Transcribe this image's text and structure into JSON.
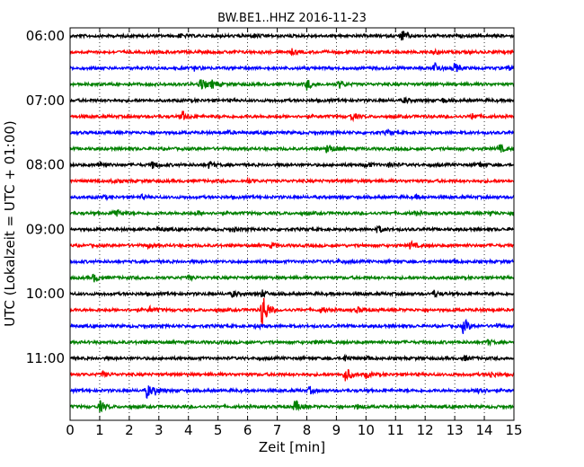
{
  "chart_data": {
    "type": "line",
    "title": "BW.BE1..HHZ 2016-11-23",
    "xlabel": "Zeit  [min]",
    "ylabel": "UTC (Lokalzeit = UTC + 01:00)",
    "xlim": [
      0,
      15
    ],
    "x_ticks": [
      "0",
      "1",
      "2",
      "3",
      "4",
      "5",
      "6",
      "7",
      "8",
      "9",
      "10",
      "11",
      "12",
      "13",
      "14",
      "15"
    ],
    "y_ticks": [
      "06:00",
      "07:00",
      "08:00",
      "09:00",
      "10:00",
      "11:00"
    ],
    "grid": "vertical-dotted",
    "trace_colors": [
      "#000000",
      "#ff0000",
      "#0000ff",
      "#008000"
    ],
    "traces": [
      {
        "start": "06:00",
        "events": [
          [
            3.7,
            0.3
          ],
          [
            6.2,
            0.25
          ],
          [
            11.2,
            0.9
          ]
        ]
      },
      {
        "start": "06:15",
        "events": [
          [
            7.5,
            0.35
          ],
          [
            12.3,
            0.25
          ]
        ]
      },
      {
        "start": "06:30",
        "events": [
          [
            4.2,
            0.3
          ],
          [
            12.3,
            1.0
          ],
          [
            13.0,
            0.7
          ],
          [
            14.8,
            0.3
          ]
        ]
      },
      {
        "start": "06:45",
        "events": [
          [
            4.4,
            1.0
          ],
          [
            4.8,
            0.6
          ],
          [
            8.0,
            0.9
          ],
          [
            9.1,
            0.6
          ]
        ]
      },
      {
        "start": "07:00",
        "events": [
          [
            11.3,
            0.4
          ],
          [
            12.6,
            0.3
          ]
        ]
      },
      {
        "start": "07:15",
        "events": [
          [
            3.8,
            0.8
          ],
          [
            9.5,
            0.6
          ],
          [
            13.6,
            0.5
          ]
        ]
      },
      {
        "start": "07:30",
        "events": [
          [
            5.3,
            0.3
          ],
          [
            10.7,
            0.3
          ]
        ]
      },
      {
        "start": "07:45",
        "events": [
          [
            8.7,
            0.9
          ],
          [
            14.5,
            0.7
          ]
        ]
      },
      {
        "start": "08:00",
        "events": [
          [
            1.0,
            0.5
          ],
          [
            2.8,
            0.6
          ],
          [
            4.7,
            0.5
          ],
          [
            10.0,
            0.4
          ],
          [
            10.8,
            0.4
          ],
          [
            13.8,
            0.4
          ]
        ]
      },
      {
        "start": "08:15",
        "events": [
          [
            1.4,
            0.3
          ],
          [
            6.0,
            0.3
          ]
        ]
      },
      {
        "start": "08:30",
        "events": [
          [
            1.1,
            0.3
          ],
          [
            2.4,
            0.3
          ],
          [
            11.7,
            0.2
          ]
        ]
      },
      {
        "start": "08:45",
        "events": [
          [
            1.5,
            0.9
          ],
          [
            4.3,
            0.3
          ],
          [
            11.6,
            0.3
          ],
          [
            14.2,
            0.3
          ]
        ]
      },
      {
        "start": "09:00",
        "events": [
          [
            3.0,
            0.3
          ],
          [
            5.5,
            0.3
          ],
          [
            10.4,
            0.6
          ]
        ]
      },
      {
        "start": "09:15",
        "events": [
          [
            2.6,
            0.3
          ],
          [
            6.8,
            0.3
          ],
          [
            11.5,
            0.6
          ]
        ]
      },
      {
        "start": "09:30",
        "events": [
          [
            9.0,
            0.3
          ],
          [
            13.0,
            0.3
          ]
        ]
      },
      {
        "start": "09:45",
        "events": [
          [
            0.8,
            0.6
          ],
          [
            4.0,
            0.3
          ]
        ]
      },
      {
        "start": "10:00",
        "events": [
          [
            5.5,
            0.5
          ],
          [
            6.5,
            0.5
          ],
          [
            12.3,
            0.5
          ]
        ]
      },
      {
        "start": "10:15",
        "events": [
          [
            2.7,
            0.4
          ],
          [
            6.5,
            3.2
          ],
          [
            8.5,
            0.4
          ],
          [
            9.7,
            0.4
          ]
        ]
      },
      {
        "start": "10:30",
        "events": [
          [
            6.3,
            0.3
          ],
          [
            13.3,
            1.3
          ],
          [
            14.4,
            0.3
          ]
        ]
      },
      {
        "start": "10:45",
        "events": [
          [
            8.3,
            0.2
          ],
          [
            14.1,
            0.4
          ]
        ]
      },
      {
        "start": "11:00",
        "events": [
          [
            9.3,
            0.5
          ],
          [
            10.0,
            0.4
          ],
          [
            13.3,
            0.4
          ]
        ]
      },
      {
        "start": "11:15",
        "events": [
          [
            1.1,
            0.4
          ],
          [
            9.3,
            1.3
          ],
          [
            10.0,
            0.5
          ],
          [
            14.2,
            0.5
          ]
        ]
      },
      {
        "start": "11:30",
        "events": [
          [
            2.6,
            1.2
          ],
          [
            2.9,
            0.5
          ],
          [
            8.1,
            0.5
          ],
          [
            13.8,
            0.7
          ]
        ]
      },
      {
        "start": "11:45",
        "events": [
          [
            1.0,
            0.9
          ],
          [
            7.6,
            1.0
          ],
          [
            9.7,
            0.3
          ]
        ]
      }
    ]
  }
}
